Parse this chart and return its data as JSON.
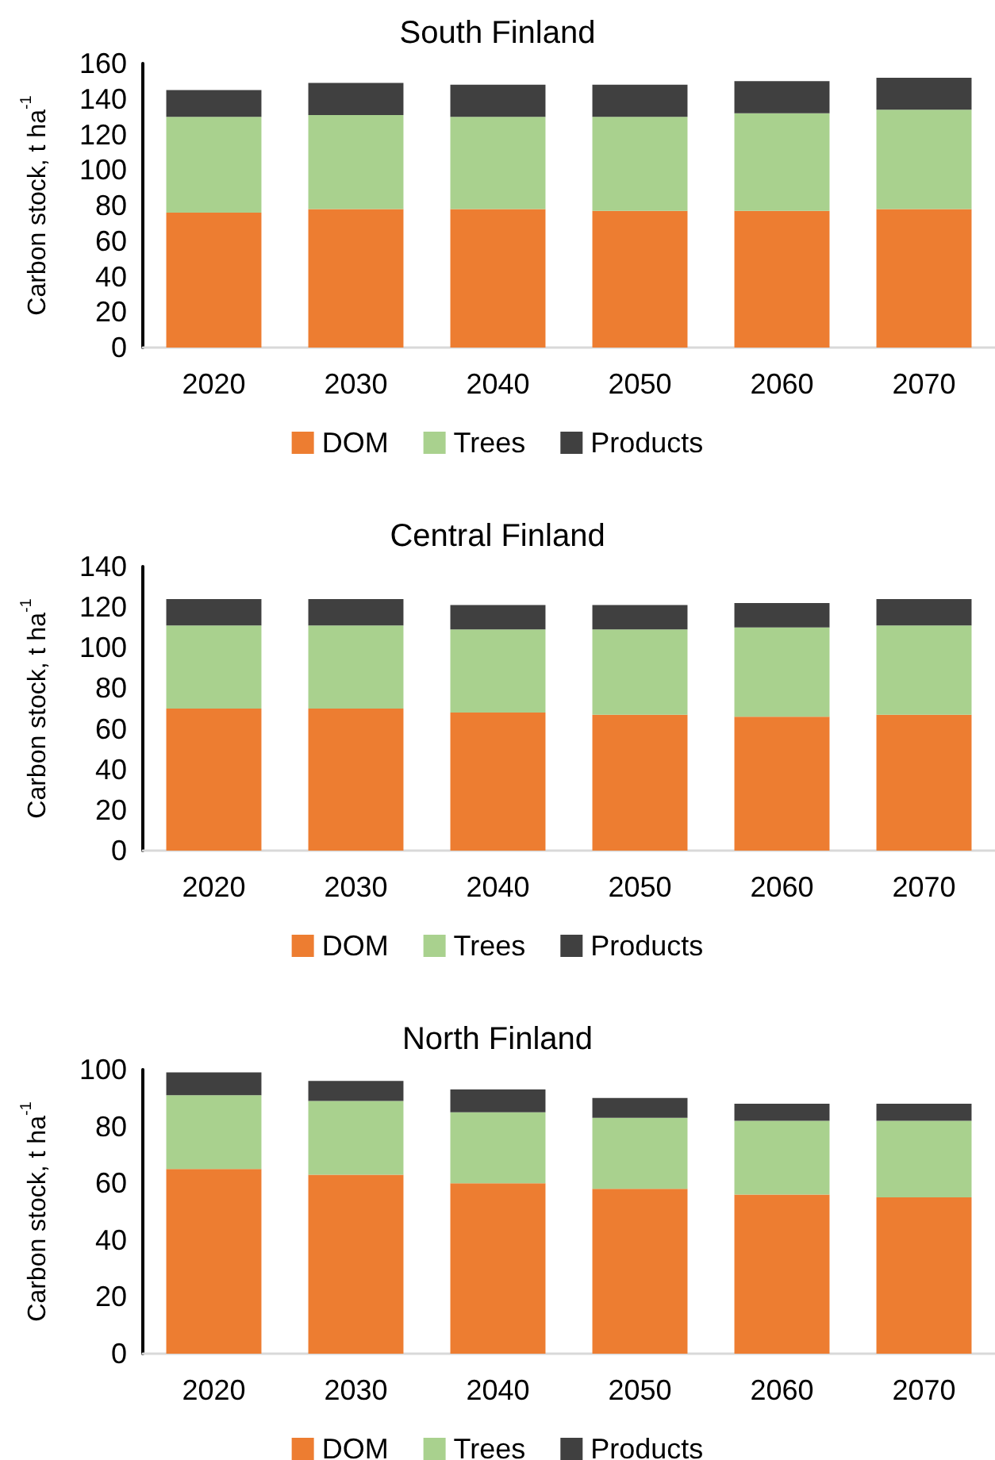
{
  "chart_data": [
    {
      "type": "bar",
      "title": "South Finland",
      "ylabel": "Carbon stock, t ha$^{-1}$",
      "categories": [
        "2020",
        "2030",
        "2040",
        "2050",
        "2060",
        "2070"
      ],
      "stacked": true,
      "series": [
        {
          "name": "DOM",
          "color": "#ed7d31",
          "values": [
            76,
            78,
            78,
            77,
            77,
            78
          ]
        },
        {
          "name": "Trees",
          "color": "#a9d18e",
          "values": [
            54,
            53,
            52,
            53,
            55,
            56
          ]
        },
        {
          "name": "Products",
          "color": "#404040",
          "values": [
            15,
            18,
            18,
            18,
            18,
            18
          ]
        }
      ],
      "ylim": [
        0,
        160
      ],
      "yticks": [
        0,
        20,
        40,
        60,
        80,
        100,
        120,
        140,
        160
      ],
      "grid": false,
      "legend": "bottom"
    },
    {
      "type": "bar",
      "title": "Central Finland",
      "ylabel": "Carbon stock, t ha$^{-1}$",
      "categories": [
        "2020",
        "2030",
        "2040",
        "2050",
        "2060",
        "2070"
      ],
      "stacked": true,
      "series": [
        {
          "name": "DOM",
          "color": "#ed7d31",
          "values": [
            70,
            70,
            68,
            67,
            66,
            67
          ]
        },
        {
          "name": "Trees",
          "color": "#a9d18e",
          "values": [
            41,
            41,
            41,
            42,
            44,
            44
          ]
        },
        {
          "name": "Products",
          "color": "#404040",
          "values": [
            13,
            13,
            12,
            12,
            12,
            13
          ]
        }
      ],
      "ylim": [
        0,
        140
      ],
      "yticks": [
        0,
        20,
        40,
        60,
        80,
        100,
        120,
        140
      ],
      "grid": false,
      "legend": "bottom"
    },
    {
      "type": "bar",
      "title": "North Finland",
      "ylabel": "Carbon stock, t ha$^{-1}$",
      "categories": [
        "2020",
        "2030",
        "2040",
        "2050",
        "2060",
        "2070"
      ],
      "stacked": true,
      "series": [
        {
          "name": "DOM",
          "color": "#ed7d31",
          "values": [
            65,
            63,
            60,
            58,
            56,
            55
          ]
        },
        {
          "name": "Trees",
          "color": "#a9d18e",
          "values": [
            26,
            26,
            25,
            25,
            26,
            27
          ]
        },
        {
          "name": "Products",
          "color": "#404040",
          "values": [
            8,
            7,
            8,
            7,
            6,
            6
          ]
        }
      ],
      "ylim": [
        0,
        100
      ],
      "yticks": [
        0,
        20,
        40,
        60,
        80,
        100
      ],
      "grid": false,
      "legend": "bottom"
    }
  ]
}
